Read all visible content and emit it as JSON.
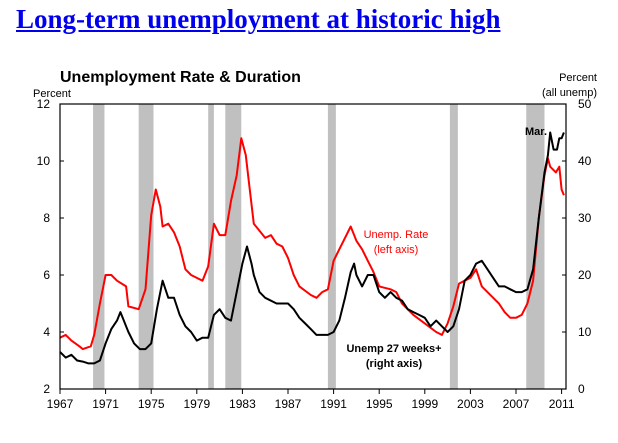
{
  "headline": "Long-term unemployment at historic high",
  "chart_data": {
    "type": "line",
    "title": "Unemployment Rate & Duration",
    "ylabel_left": "Percent",
    "ylabel_right": [
      "Percent",
      "(all unemp)"
    ],
    "xlim": [
      1967,
      2011.3
    ],
    "ylim_left": [
      2,
      12
    ],
    "ylim_right": [
      0,
      50
    ],
    "x_ticks": [
      1967,
      1971,
      1975,
      1979,
      1983,
      1987,
      1991,
      1995,
      1999,
      2003,
      2007,
      2011
    ],
    "y_ticks_left": [
      2,
      4,
      6,
      8,
      10,
      12
    ],
    "y_ticks_right": [
      0,
      10,
      20,
      30,
      40,
      50
    ],
    "recessions": [
      [
        1969.9,
        1970.9
      ],
      [
        1973.9,
        1975.2
      ],
      [
        1980.0,
        1980.5
      ],
      [
        1981.5,
        1982.9
      ],
      [
        1990.5,
        1991.2
      ],
      [
        2001.2,
        2001.9
      ],
      [
        2007.9,
        2009.5
      ]
    ],
    "series": [
      {
        "name": "Unemp. Rate",
        "axis": "left",
        "color": "#ff0000",
        "label": [
          "Unemp. Rate",
          "(left axis)"
        ],
        "x": [
          1967,
          1967.5,
          1968,
          1968.7,
          1969,
          1969.7,
          1970,
          1970.5,
          1971,
          1971.5,
          1972,
          1972.8,
          1973,
          1973.9,
          1974.5,
          1975,
          1975.4,
          1975.8,
          1976,
          1976.5,
          1977,
          1977.5,
          1978,
          1978.5,
          1979,
          1979.5,
          1980,
          1980.5,
          1981,
          1981.5,
          1982,
          1982.5,
          1982.9,
          1983.3,
          1983.5,
          1984,
          1985,
          1985.5,
          1986,
          1986.5,
          1987,
          1987.5,
          1988,
          1989,
          1989.5,
          1990,
          1990.5,
          1991,
          1991.5,
          1992,
          1992.5,
          1993,
          1993.5,
          1994,
          1994.5,
          1995,
          1996,
          1996.5,
          1997,
          1998,
          1999,
          2000,
          2000.5,
          2001,
          2001.5,
          2002,
          2002.5,
          2003,
          2003.5,
          2004,
          2005,
          2005.5,
          2006,
          2006.5,
          2007,
          2007.5,
          2008,
          2008.5,
          2009,
          2009.5,
          2009.8,
          2010,
          2010.5,
          2010.8,
          2011,
          2011.2
        ],
        "y": [
          3.8,
          3.9,
          3.7,
          3.5,
          3.4,
          3.5,
          3.9,
          5.0,
          6.0,
          6.0,
          5.8,
          5.6,
          4.9,
          4.8,
          5.5,
          8.1,
          9.0,
          8.4,
          7.7,
          7.8,
          7.5,
          7.0,
          6.2,
          6.0,
          5.9,
          5.8,
          6.3,
          7.8,
          7.4,
          7.4,
          8.6,
          9.5,
          10.8,
          10.2,
          9.5,
          7.8,
          7.3,
          7.4,
          7.1,
          7.0,
          6.6,
          6.0,
          5.6,
          5.3,
          5.2,
          5.4,
          5.5,
          6.5,
          6.9,
          7.3,
          7.7,
          7.2,
          6.9,
          6.5,
          6.1,
          5.6,
          5.5,
          5.4,
          5.0,
          4.6,
          4.3,
          4.0,
          3.9,
          4.3,
          4.9,
          5.7,
          5.8,
          5.9,
          6.2,
          5.6,
          5.2,
          5.0,
          4.7,
          4.5,
          4.5,
          4.6,
          5.0,
          5.8,
          8.0,
          9.5,
          10.1,
          9.8,
          9.6,
          9.8,
          9.0,
          8.8
        ]
      },
      {
        "name": "Unemp 27 weeks+",
        "axis": "right",
        "color": "#000000",
        "label": [
          "Unemp 27 weeks+",
          "(right axis)"
        ],
        "x": [
          1967,
          1967.5,
          1968,
          1968.5,
          1969,
          1969.5,
          1970,
          1970.5,
          1971,
          1971.5,
          1972,
          1972.3,
          1972.5,
          1973,
          1973.5,
          1974,
          1974.5,
          1975,
          1975.5,
          1976,
          1976.5,
          1977,
          1977.5,
          1978,
          1978.5,
          1979,
          1979.5,
          1980,
          1980.5,
          1981,
          1981.5,
          1982,
          1982.5,
          1983,
          1983.4,
          1983.8,
          1984,
          1984.5,
          1985,
          1986,
          1987,
          1987.5,
          1988,
          1988.5,
          1989,
          1989.5,
          1990,
          1990.5,
          1991,
          1991.5,
          1992,
          1992.5,
          1992.8,
          1993,
          1993.5,
          1994,
          1994.5,
          1995,
          1995.5,
          1996,
          1996.5,
          1997,
          1997.5,
          1998,
          1998.5,
          1999,
          1999.5,
          2000,
          2000.5,
          2001,
          2001.5,
          2002,
          2002.5,
          2003,
          2003.5,
          2004,
          2004.5,
          2005,
          2005.5,
          2006,
          2006.5,
          2007,
          2007.5,
          2008,
          2008.5,
          2009,
          2009.5,
          2009.8,
          2010,
          2010.3,
          2010.6,
          2010.8,
          2011,
          2011.2
        ],
        "y": [
          6.5,
          5.5,
          6,
          5,
          4.8,
          4.5,
          4.5,
          5,
          8,
          10.5,
          12,
          13.5,
          12.5,
          10,
          8,
          7,
          7,
          8,
          14,
          19,
          16,
          16,
          13,
          11,
          10,
          8.5,
          9,
          9,
          13,
          14,
          12.5,
          12,
          17,
          22,
          25,
          22,
          20,
          17,
          16,
          15,
          15,
          14,
          12.5,
          11.5,
          10.5,
          9.5,
          9.5,
          9.5,
          10,
          12,
          16,
          20.5,
          22,
          20,
          18,
          20,
          20,
          17,
          16,
          17,
          16,
          15.5,
          14,
          13.5,
          13,
          12.5,
          11,
          12,
          11,
          10,
          11,
          14,
          19,
          20,
          22,
          22.5,
          21,
          19.5,
          18,
          18,
          17.5,
          17,
          17,
          17.5,
          21,
          30,
          38,
          41,
          45,
          42,
          42,
          44,
          44,
          45
        ]
      }
    ],
    "annotations": [
      "Mar."
    ]
  }
}
